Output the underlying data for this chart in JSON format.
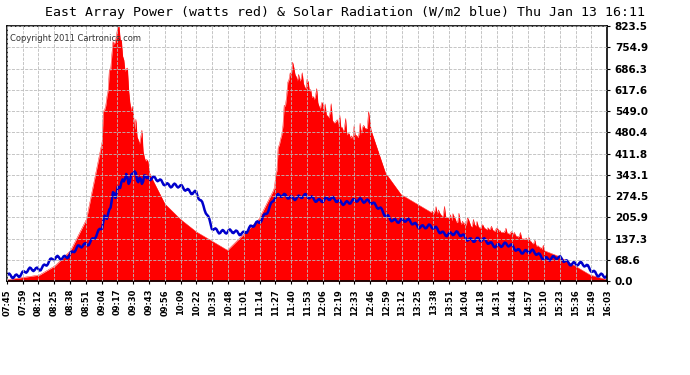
{
  "title": "East Array Power (watts red) & Solar Radiation (W/m2 blue) Thu Jan 13 16:11",
  "copyright": "Copyright 2011 Cartronics.com",
  "background_color": "#ffffff",
  "plot_bg_color": "#ffffff",
  "red_color": "#ff0000",
  "blue_color": "#0000cc",
  "grid_color": "#bbbbbb",
  "text_color": "#000000",
  "ymax": 823.5,
  "yticks": [
    0.0,
    68.6,
    137.3,
    205.9,
    274.5,
    343.1,
    411.8,
    480.4,
    549.0,
    617.6,
    686.3,
    754.9,
    823.5
  ],
  "xtick_labels": [
    "07:45",
    "07:59",
    "08:12",
    "08:25",
    "08:38",
    "08:51",
    "09:04",
    "09:17",
    "09:30",
    "09:43",
    "09:56",
    "10:09",
    "10:22",
    "10:35",
    "10:48",
    "11:01",
    "11:14",
    "11:27",
    "11:40",
    "11:53",
    "12:06",
    "12:19",
    "12:33",
    "12:46",
    "12:59",
    "13:12",
    "13:25",
    "13:38",
    "13:51",
    "14:04",
    "14:18",
    "14:31",
    "14:44",
    "14:57",
    "15:10",
    "15:23",
    "15:36",
    "15:49",
    "16:03"
  ]
}
